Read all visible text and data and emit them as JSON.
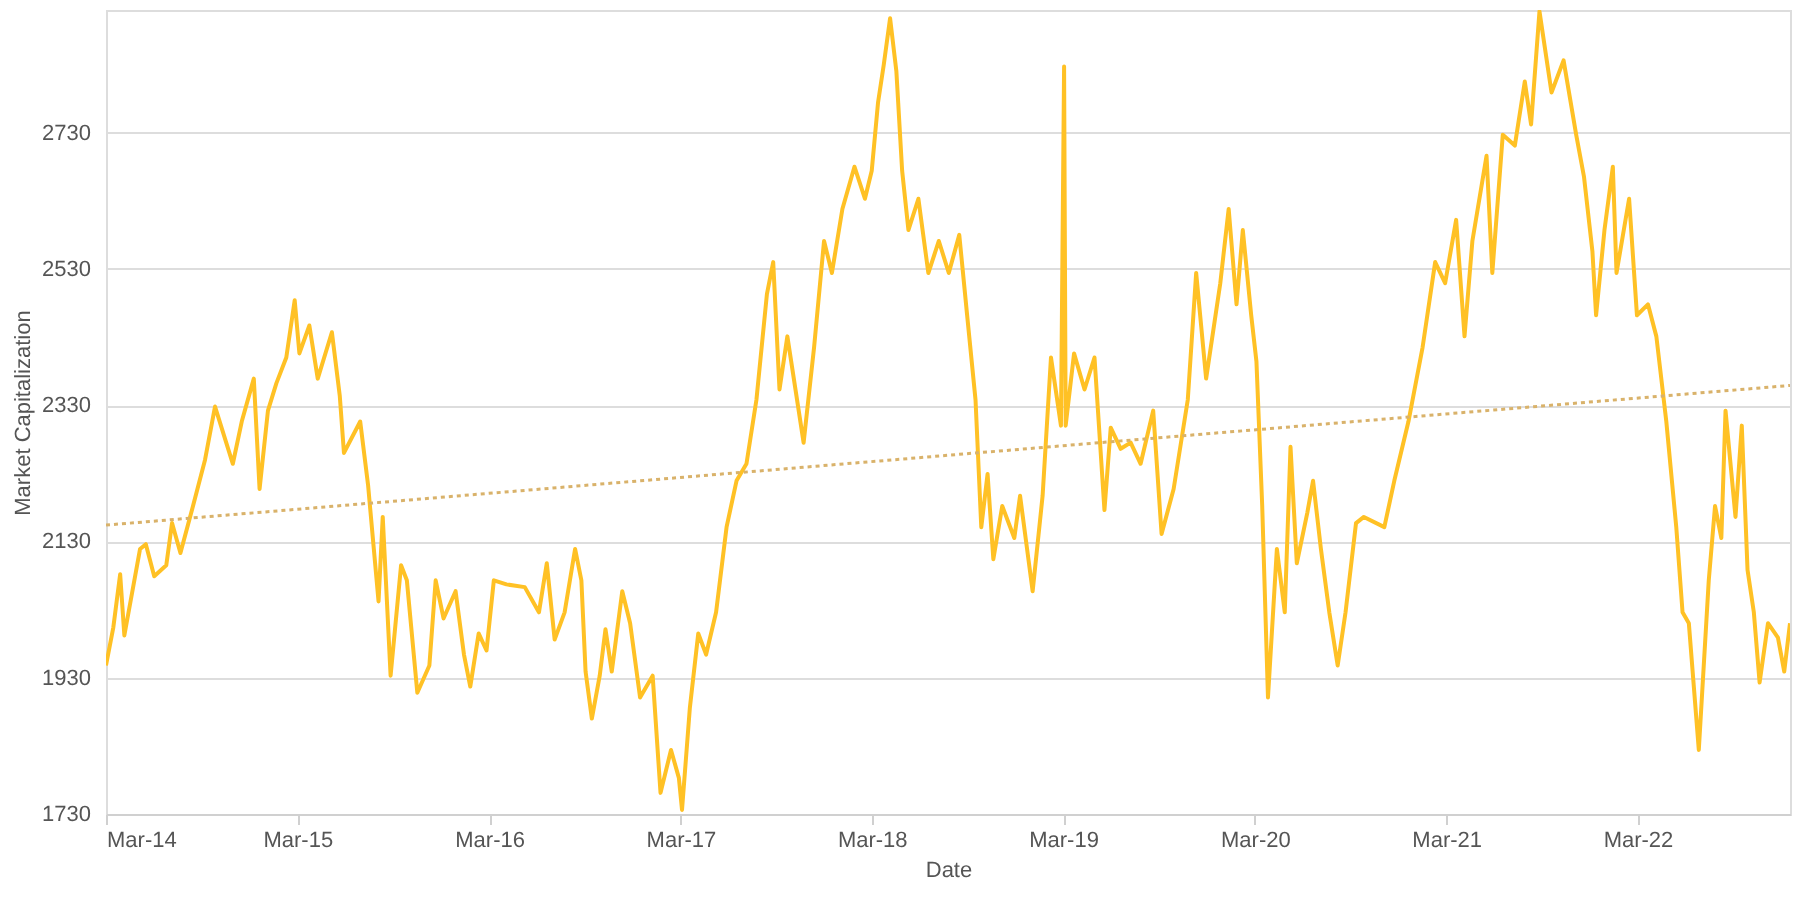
{
  "chart_data": {
    "type": "line",
    "xlabel": "Date",
    "ylabel": "Market Capitalization",
    "xlim": [
      "2014-03-01",
      "2022-12-17"
    ],
    "ylim": [
      1730,
      2910
    ],
    "xticks": [
      {
        "value": "2014-03-01",
        "label": "Mar-14"
      },
      {
        "value": "2015-03-01",
        "label": "Mar-15"
      },
      {
        "value": "2016-03-01",
        "label": "Mar-16"
      },
      {
        "value": "2017-03-01",
        "label": "Mar-17"
      },
      {
        "value": "2018-03-01",
        "label": "Mar-18"
      },
      {
        "value": "2019-03-01",
        "label": "Mar-19"
      },
      {
        "value": "2020-03-01",
        "label": "Mar-20"
      },
      {
        "value": "2021-03-01",
        "label": "Mar-21"
      },
      {
        "value": "2022-03-01",
        "label": "Mar-22"
      }
    ],
    "yticks": [
      1730,
      1930,
      2130,
      2330,
      2530,
      2730
    ],
    "grid": "y",
    "marker": "none",
    "line_style": "solid",
    "series": [
      {
        "color": "#ffc125",
        "x": [
          "2014-03-01",
          "2014-03-15",
          "2014-03-28",
          "2014-04-05",
          "2014-05-05",
          "2014-05-16",
          "2014-06-01",
          "2014-06-24",
          "2014-07-05",
          "2014-07-21",
          "2014-08-14",
          "2014-09-06",
          "2014-09-25",
          "2014-10-29",
          "2014-11-15",
          "2014-12-08",
          "2014-12-19",
          "2015-01-04",
          "2015-01-20",
          "2015-02-08",
          "2015-02-24",
          "2015-03-05",
          "2015-03-24",
          "2015-04-09",
          "2015-05-06",
          "2015-05-21",
          "2015-05-29",
          "2015-06-29",
          "2015-07-14",
          "2015-08-03",
          "2015-08-11",
          "2015-08-26",
          "2015-09-15",
          "2015-09-26",
          "2015-10-16",
          "2015-11-08",
          "2015-11-20",
          "2015-12-05",
          "2015-12-28",
          "2016-01-13",
          "2016-01-25",
          "2016-02-10",
          "2016-02-25",
          "2016-03-10",
          "2016-04-03",
          "2016-05-08",
          "2016-06-04",
          "2016-06-19",
          "2016-07-04",
          "2016-07-23",
          "2016-08-12",
          "2016-08-24",
          "2016-09-01",
          "2016-09-13",
          "2016-09-28",
          "2016-10-09",
          "2016-10-21",
          "2016-11-10",
          "2016-11-25",
          "2016-12-14",
          "2017-01-07",
          "2017-01-22",
          "2017-02-11",
          "2017-02-26",
          "2017-03-04",
          "2017-03-19",
          "2017-04-04",
          "2017-04-19",
          "2017-05-08",
          "2017-05-28",
          "2017-06-16",
          "2017-07-05",
          "2017-07-24",
          "2017-08-13",
          "2017-08-25",
          "2017-09-06",
          "2017-09-21",
          "2017-10-22",
          "2017-11-11",
          "2017-11-30",
          "2017-12-15",
          "2018-01-04",
          "2018-01-27",
          "2018-02-16",
          "2018-03-01",
          "2018-03-13",
          "2018-03-24",
          "2018-04-05",
          "2018-04-17",
          "2018-04-28",
          "2018-05-10",
          "2018-05-29",
          "2018-06-17",
          "2018-07-07",
          "2018-07-26",
          "2018-08-15",
          "2018-08-30",
          "2018-09-15",
          "2018-09-26",
          "2018-10-08",
          "2018-10-19",
          "2018-11-05",
          "2018-11-28",
          "2018-12-09",
          "2019-01-02",
          "2019-01-21",
          "2019-02-06",
          "2019-02-25",
          "2019-03-03",
          "2019-03-06",
          "2019-03-22",
          "2019-04-11",
          "2019-04-30",
          "2019-05-19",
          "2019-05-31",
          "2019-06-19",
          "2019-07-08",
          "2019-07-27",
          "2019-08-20",
          "2019-09-05",
          "2019-09-28",
          "2019-10-25",
          "2019-11-10",
          "2019-11-29",
          "2019-12-26",
          "2020-01-11",
          "2020-01-26",
          "2020-02-07",
          "2020-02-23",
          "2020-03-04",
          "2020-03-15",
          "2020-03-26",
          "2020-04-12",
          "2020-04-27",
          "2020-05-08",
          "2020-05-20",
          "2020-06-09",
          "2020-06-20",
          "2020-07-05",
          "2020-07-21",
          "2020-08-06",
          "2020-08-21",
          "2020-09-10",
          "2020-09-25",
          "2020-11-03",
          "2020-11-22",
          "2020-12-19",
          "2021-01-15",
          "2021-02-08",
          "2021-02-27",
          "2021-03-20",
          "2021-04-05",
          "2021-04-20",
          "2021-05-17",
          "2021-05-28",
          "2021-06-17",
          "2021-07-10",
          "2021-07-29",
          "2021-08-10",
          "2021-08-26",
          "2021-09-18",
          "2021-10-11",
          "2021-11-04",
          "2021-11-19",
          "2021-12-05",
          "2021-12-12",
          "2021-12-28",
          "2022-01-13",
          "2022-01-20",
          "2022-02-13",
          "2022-02-28",
          "2022-03-21",
          "2022-04-06",
          "2022-04-25",
          "2022-05-14",
          "2022-05-26",
          "2022-06-07",
          "2022-06-26",
          "2022-07-15",
          "2022-07-27",
          "2022-08-08",
          "2022-08-16",
          "2022-09-04",
          "2022-09-16",
          "2022-09-27",
          "2022-10-09",
          "2022-10-20",
          "2022-11-05",
          "2022-11-24",
          "2022-12-06",
          "2022-12-17"
        ],
        "values": [
          1948,
          2004,
          2082,
          1992,
          2119,
          2126,
          2079,
          2095,
          2157,
          2113,
          2182,
          2250,
          2328,
          2244,
          2306,
          2369,
          2207,
          2322,
          2362,
          2400,
          2484,
          2406,
          2447,
          2369,
          2437,
          2344,
          2260,
          2306,
          2213,
          2042,
          2166,
          1933,
          2095,
          2073,
          1908,
          1948,
          2073,
          2017,
          2057,
          1964,
          1917,
          1995,
          1970,
          2073,
          2067,
          2063,
          2026,
          2098,
          1986,
          2026,
          2119,
          2073,
          1939,
          1870,
          1933,
          2001,
          1939,
          2057,
          2010,
          1901,
          1933,
          1761,
          1824,
          1783,
          1736,
          1886,
          1995,
          1964,
          2026,
          2151,
          2219,
          2244,
          2338,
          2493,
          2540,
          2353,
          2431,
          2275,
          2415,
          2571,
          2524,
          2618,
          2680,
          2633,
          2674,
          2774,
          2830,
          2898,
          2820,
          2674,
          2587,
          2633,
          2524,
          2571,
          2524,
          2580,
          2462,
          2338,
          2151,
          2229,
          2104,
          2182,
          2135,
          2197,
          2057,
          2197,
          2400,
          2300,
          2827,
          2300,
          2406,
          2353,
          2400,
          2176,
          2297,
          2266,
          2275,
          2244,
          2322,
          2141,
          2207,
          2338,
          2524,
          2369,
          2509,
          2618,
          2478,
          2587,
          2462,
          2394,
          2182,
          1901,
          2119,
          2026,
          2269,
          2098,
          2172,
          2219,
          2119,
          2026,
          1948,
          2026,
          2157,
          2166,
          2151,
          2219,
          2306,
          2415,
          2540,
          2509,
          2602,
          2431,
          2571,
          2696,
          2524,
          2727,
          2711,
          2805,
          2742,
          2908,
          2789,
          2836,
          2727,
          2665,
          2556,
          2462,
          2587,
          2680,
          2524,
          2633,
          2462,
          2478,
          2431,
          2306,
          2151,
          2026,
          2010,
          1824,
          2073,
          2182,
          2135,
          2322,
          2166,
          2300,
          2088,
          2026,
          1923,
          2010,
          1989,
          1939,
          2010
        ]
      },
      {
        "type": "line",
        "color": "#d9b26a",
        "line_style": "dotted",
        "x": [
          "2014-03-01",
          "2022-12-17"
        ],
        "values": [
          2154,
          2359
        ]
      }
    ]
  }
}
